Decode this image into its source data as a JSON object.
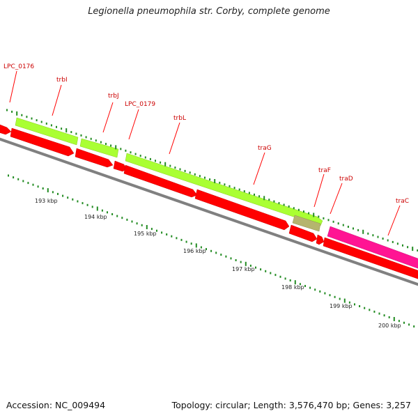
{
  "title": "Legionella pneumophila str. Corby, complete genome",
  "accession": "Accession: NC_009494",
  "topology": "Topology: circular; Length: 3,576,470 bp; Genes: 3,257",
  "colors": {
    "forward_gene": "#aaff33",
    "reverse_gene": "#ff0000",
    "pink_gene": "#ff1493",
    "tan_gene": "#b5b56e",
    "backbone": "#808080",
    "tick": "#228b22",
    "label": "#cc0000"
  },
  "gene_labels": [
    {
      "name": "LPC_0176"
    },
    {
      "name": "trbI"
    },
    {
      "name": "trbJ"
    },
    {
      "name": "LPC_0179"
    },
    {
      "name": "trbL"
    },
    {
      "name": "traG"
    },
    {
      "name": "traF"
    },
    {
      "name": "traD"
    },
    {
      "name": "traC"
    }
  ],
  "kbp_labels": [
    "193 kbp",
    "194 kbp",
    "195 kbp",
    "196 kbp",
    "197 kbp",
    "198 kbp",
    "199 kbp",
    "200 kbp"
  ]
}
